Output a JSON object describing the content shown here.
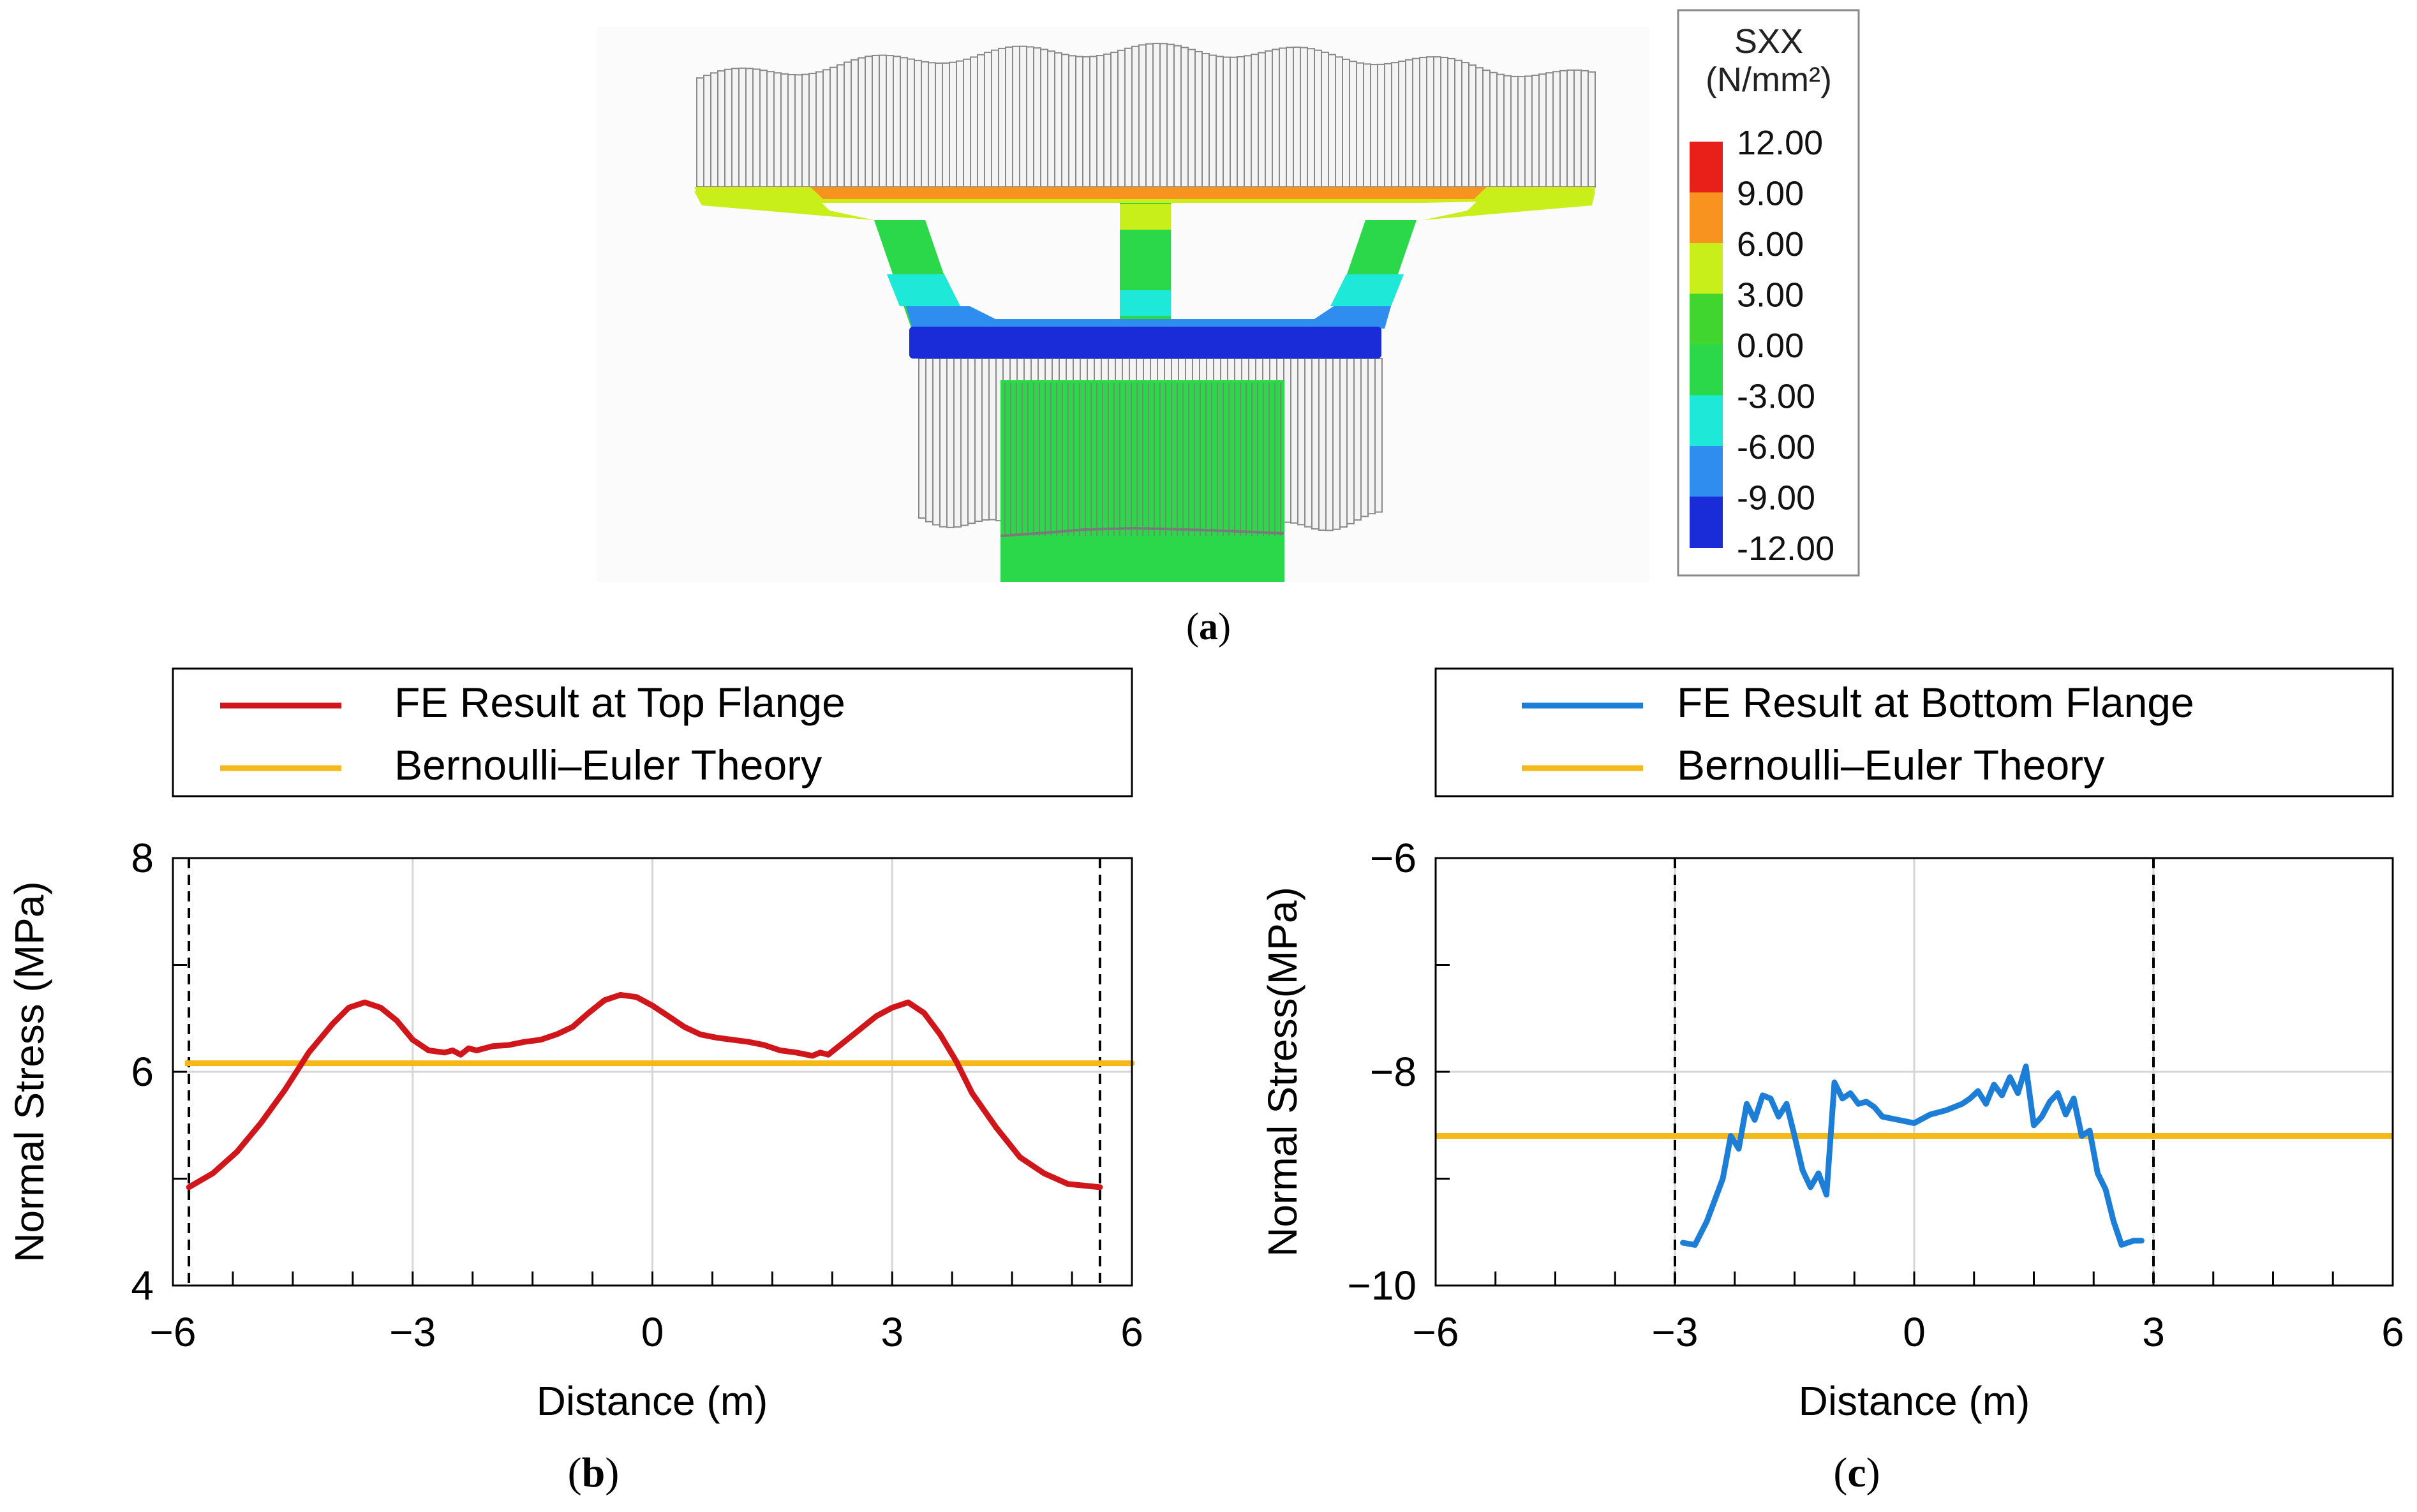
{
  "panel_a": {
    "caption_open": "(",
    "caption_letter": "a",
    "caption_close": ")",
    "legend": {
      "title_line1": "SXX",
      "title_line2": "(N/mm²)",
      "entries": [
        {
          "label": "12.00",
          "color": "#e8201a"
        },
        {
          "label": "9.00",
          "color": "#f7931e"
        },
        {
          "label": "6.00",
          "color": "#c9ef1a"
        },
        {
          "label": "3.00",
          "color": "#41d62f"
        },
        {
          "label": "0.00",
          "color": "#2ad84a"
        },
        {
          "label": "-3.00",
          "color": "#1ee8d8"
        },
        {
          "label": "-6.00",
          "color": "#2f8df0"
        },
        {
          "label": "-9.00",
          "color": "#1a2bd8"
        },
        {
          "label": "-12.00",
          "color": ""
        }
      ]
    }
  },
  "chart_data": [
    {
      "type": "line",
      "caption_open": "(",
      "caption_letter": "b",
      "caption_close": ")",
      "xlabel": "Distance (m)",
      "ylabel": "Normal Stress (MPa)",
      "xlim": [
        -6,
        6
      ],
      "ylim": [
        4,
        8
      ],
      "xticks": [
        -6,
        -3,
        0,
        3,
        6
      ],
      "xtick_labels": [
        "−6",
        "−3",
        "0",
        "3",
        "6"
      ],
      "yticks": [
        4,
        6,
        8
      ],
      "ytick_labels": [
        "4",
        "6",
        "8"
      ],
      "x_minor_step": 0.75,
      "y_minor_step": 1,
      "grid": true,
      "vlines": [
        -5.8,
        5.6
      ],
      "legend": [
        {
          "name": "FE Result at Top Flange",
          "color": "#d0161b"
        },
        {
          "name": "Bernoulli–Euler Theory",
          "color": "#f6b91a"
        }
      ],
      "series": [
        {
          "name": "FE Result at Top Flange",
          "color": "#d0161b",
          "x": [
            -5.8,
            -5.5,
            -5.2,
            -4.9,
            -4.6,
            -4.3,
            -4.0,
            -3.8,
            -3.6,
            -3.4,
            -3.2,
            -3.0,
            -2.8,
            -2.6,
            -2.5,
            -2.4,
            -2.3,
            -2.2,
            -2.0,
            -1.8,
            -1.6,
            -1.4,
            -1.2,
            -1.0,
            -0.8,
            -0.6,
            -0.4,
            -0.2,
            0.0,
            0.2,
            0.4,
            0.6,
            0.8,
            1.0,
            1.2,
            1.4,
            1.6,
            1.8,
            2.0,
            2.1,
            2.2,
            2.4,
            2.6,
            2.8,
            3.0,
            3.2,
            3.4,
            3.6,
            3.8,
            4.0,
            4.3,
            4.6,
            4.9,
            5.2,
            5.6
          ],
          "y": [
            4.92,
            5.05,
            5.25,
            5.52,
            5.83,
            6.18,
            6.45,
            6.6,
            6.65,
            6.6,
            6.48,
            6.3,
            6.2,
            6.18,
            6.2,
            6.16,
            6.22,
            6.2,
            6.24,
            6.25,
            6.28,
            6.3,
            6.35,
            6.42,
            6.55,
            6.67,
            6.72,
            6.7,
            6.62,
            6.52,
            6.42,
            6.35,
            6.32,
            6.3,
            6.28,
            6.25,
            6.2,
            6.18,
            6.15,
            6.18,
            6.16,
            6.28,
            6.4,
            6.52,
            6.6,
            6.65,
            6.55,
            6.35,
            6.1,
            5.8,
            5.48,
            5.2,
            5.05,
            4.95,
            4.92
          ]
        },
        {
          "name": "Bernoulli–Euler Theory",
          "color": "#f6b91a",
          "x": [
            -6,
            6
          ],
          "y": [
            6.08,
            6.08
          ]
        }
      ]
    },
    {
      "type": "line",
      "caption_open": "(",
      "caption_letter": "c",
      "caption_close": ")",
      "xlabel": "Distance (m)",
      "ylabel": "Normal Stress(MPa)",
      "xlim": [
        -6,
        6
      ],
      "ylim": [
        -10,
        -6
      ],
      "xticks": [
        -6,
        -3,
        0,
        3,
        6
      ],
      "xtick_labels": [
        "−6",
        "−3",
        "0",
        "3",
        "6"
      ],
      "yticks": [
        -10,
        -8,
        -6
      ],
      "ytick_labels": [
        "−10",
        "−8",
        "−6"
      ],
      "x_minor_step": 0.75,
      "y_minor_step": 1,
      "grid": true,
      "vlines": [
        -3,
        3
      ],
      "legend": [
        {
          "name": "FE Result at Bottom Flange",
          "color": "#1c7ed6"
        },
        {
          "name": "Bernoulli–Euler Theory",
          "color": "#f6b91a"
        }
      ],
      "series": [
        {
          "name": "FE Result at Bottom Flange",
          "color": "#1c7ed6",
          "x": [
            -2.9,
            -2.75,
            -2.6,
            -2.4,
            -2.3,
            -2.2,
            -2.1,
            -2.0,
            -1.9,
            -1.8,
            -1.7,
            -1.6,
            -1.5,
            -1.4,
            -1.3,
            -1.2,
            -1.1,
            -1.0,
            -0.9,
            -0.8,
            -0.7,
            -0.6,
            -0.5,
            -0.4,
            -0.2,
            0.0,
            0.2,
            0.4,
            0.6,
            0.7,
            0.8,
            0.9,
            1.0,
            1.1,
            1.2,
            1.3,
            1.4,
            1.5,
            1.6,
            1.7,
            1.8,
            1.9,
            2.0,
            2.1,
            2.2,
            2.3,
            2.4,
            2.5,
            2.6,
            2.75,
            2.85
          ],
          "y": [
            -9.6,
            -9.62,
            -9.4,
            -9.0,
            -8.6,
            -8.72,
            -8.3,
            -8.45,
            -8.22,
            -8.25,
            -8.42,
            -8.3,
            -8.6,
            -8.92,
            -9.08,
            -8.95,
            -9.15,
            -8.1,
            -8.25,
            -8.2,
            -8.3,
            -8.28,
            -8.33,
            -8.42,
            -8.45,
            -8.48,
            -8.4,
            -8.36,
            -8.3,
            -8.25,
            -8.18,
            -8.3,
            -8.12,
            -8.22,
            -8.05,
            -8.2,
            -7.95,
            -8.5,
            -8.42,
            -8.28,
            -8.2,
            -8.4,
            -8.25,
            -8.6,
            -8.55,
            -8.95,
            -9.1,
            -9.4,
            -9.62,
            -9.58,
            -9.58
          ]
        },
        {
          "name": "Bernoulli–Euler Theory",
          "color": "#f6b91a",
          "x": [
            -6,
            6
          ],
          "y": [
            -8.6,
            -8.6
          ]
        }
      ]
    }
  ]
}
